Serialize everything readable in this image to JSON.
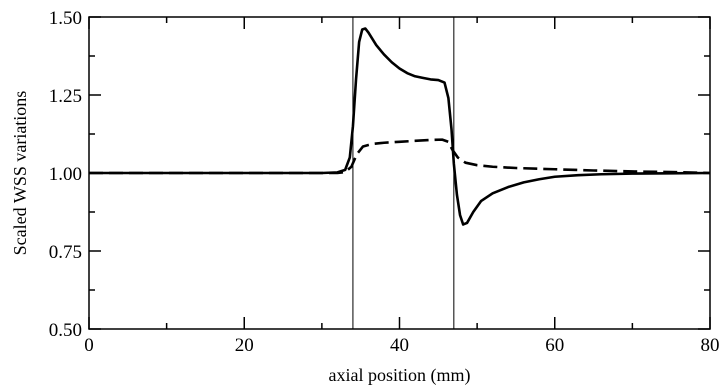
{
  "chart_data": {
    "type": "line",
    "title": "",
    "xlabel": "axial position (mm)",
    "ylabel": "Scaled WSS variations",
    "xlim": [
      0,
      80
    ],
    "ylim": [
      0.5,
      1.5
    ],
    "x_ticks": [
      0,
      20,
      40,
      60,
      80
    ],
    "x_tick_labels": [
      "0",
      "20",
      "40",
      "60",
      "80"
    ],
    "y_ticks": [
      0.5,
      0.75,
      1.0,
      1.25,
      1.5
    ],
    "y_tick_labels": [
      "0.50",
      "0.75",
      "1.00",
      "1.25",
      "1.50"
    ],
    "grid": false,
    "legend": "none",
    "vertical_lines_x": [
      34,
      47
    ],
    "series": [
      {
        "style": "solid",
        "color": "#000000",
        "points": [
          [
            0,
            1.0
          ],
          [
            10,
            1.0
          ],
          [
            20,
            1.0
          ],
          [
            30,
            1.0
          ],
          [
            32,
            1.002
          ],
          [
            33,
            1.01
          ],
          [
            33.6,
            1.05
          ],
          [
            34,
            1.15
          ],
          [
            34.4,
            1.3
          ],
          [
            34.8,
            1.42
          ],
          [
            35.2,
            1.46
          ],
          [
            35.6,
            1.463
          ],
          [
            36,
            1.45
          ],
          [
            37,
            1.41
          ],
          [
            38,
            1.38
          ],
          [
            39,
            1.355
          ],
          [
            40,
            1.335
          ],
          [
            41,
            1.32
          ],
          [
            42,
            1.31
          ],
          [
            43,
            1.305
          ],
          [
            44,
            1.3
          ],
          [
            45,
            1.298
          ],
          [
            45.8,
            1.29
          ],
          [
            46.3,
            1.24
          ],
          [
            46.7,
            1.14
          ],
          [
            47,
            1.03
          ],
          [
            47.4,
            0.93
          ],
          [
            47.8,
            0.865
          ],
          [
            48.2,
            0.835
          ],
          [
            48.7,
            0.84
          ],
          [
            49.5,
            0.875
          ],
          [
            50.5,
            0.91
          ],
          [
            52,
            0.935
          ],
          [
            54,
            0.955
          ],
          [
            56,
            0.97
          ],
          [
            58,
            0.98
          ],
          [
            60,
            0.988
          ],
          [
            63,
            0.993
          ],
          [
            66,
            0.996
          ],
          [
            70,
            0.998
          ],
          [
            75,
            0.999
          ],
          [
            80,
            1.0
          ]
        ]
      },
      {
        "style": "dashed",
        "color": "#000000",
        "points": [
          [
            0,
            1.0
          ],
          [
            10,
            1.0
          ],
          [
            20,
            1.0
          ],
          [
            30,
            1.0
          ],
          [
            32,
            1.0
          ],
          [
            33,
            1.003
          ],
          [
            33.8,
            1.02
          ],
          [
            34.5,
            1.06
          ],
          [
            35.3,
            1.085
          ],
          [
            36.5,
            1.093
          ],
          [
            38,
            1.097
          ],
          [
            40,
            1.1
          ],
          [
            42,
            1.103
          ],
          [
            44,
            1.106
          ],
          [
            45.5,
            1.107
          ],
          [
            46.3,
            1.1
          ],
          [
            46.8,
            1.075
          ],
          [
            47.5,
            1.05
          ],
          [
            48.5,
            1.033
          ],
          [
            50,
            1.025
          ],
          [
            52,
            1.02
          ],
          [
            55,
            1.016
          ],
          [
            60,
            1.012
          ],
          [
            65,
            1.008
          ],
          [
            70,
            1.005
          ],
          [
            75,
            1.003
          ],
          [
            80,
            1.0
          ]
        ]
      }
    ]
  }
}
